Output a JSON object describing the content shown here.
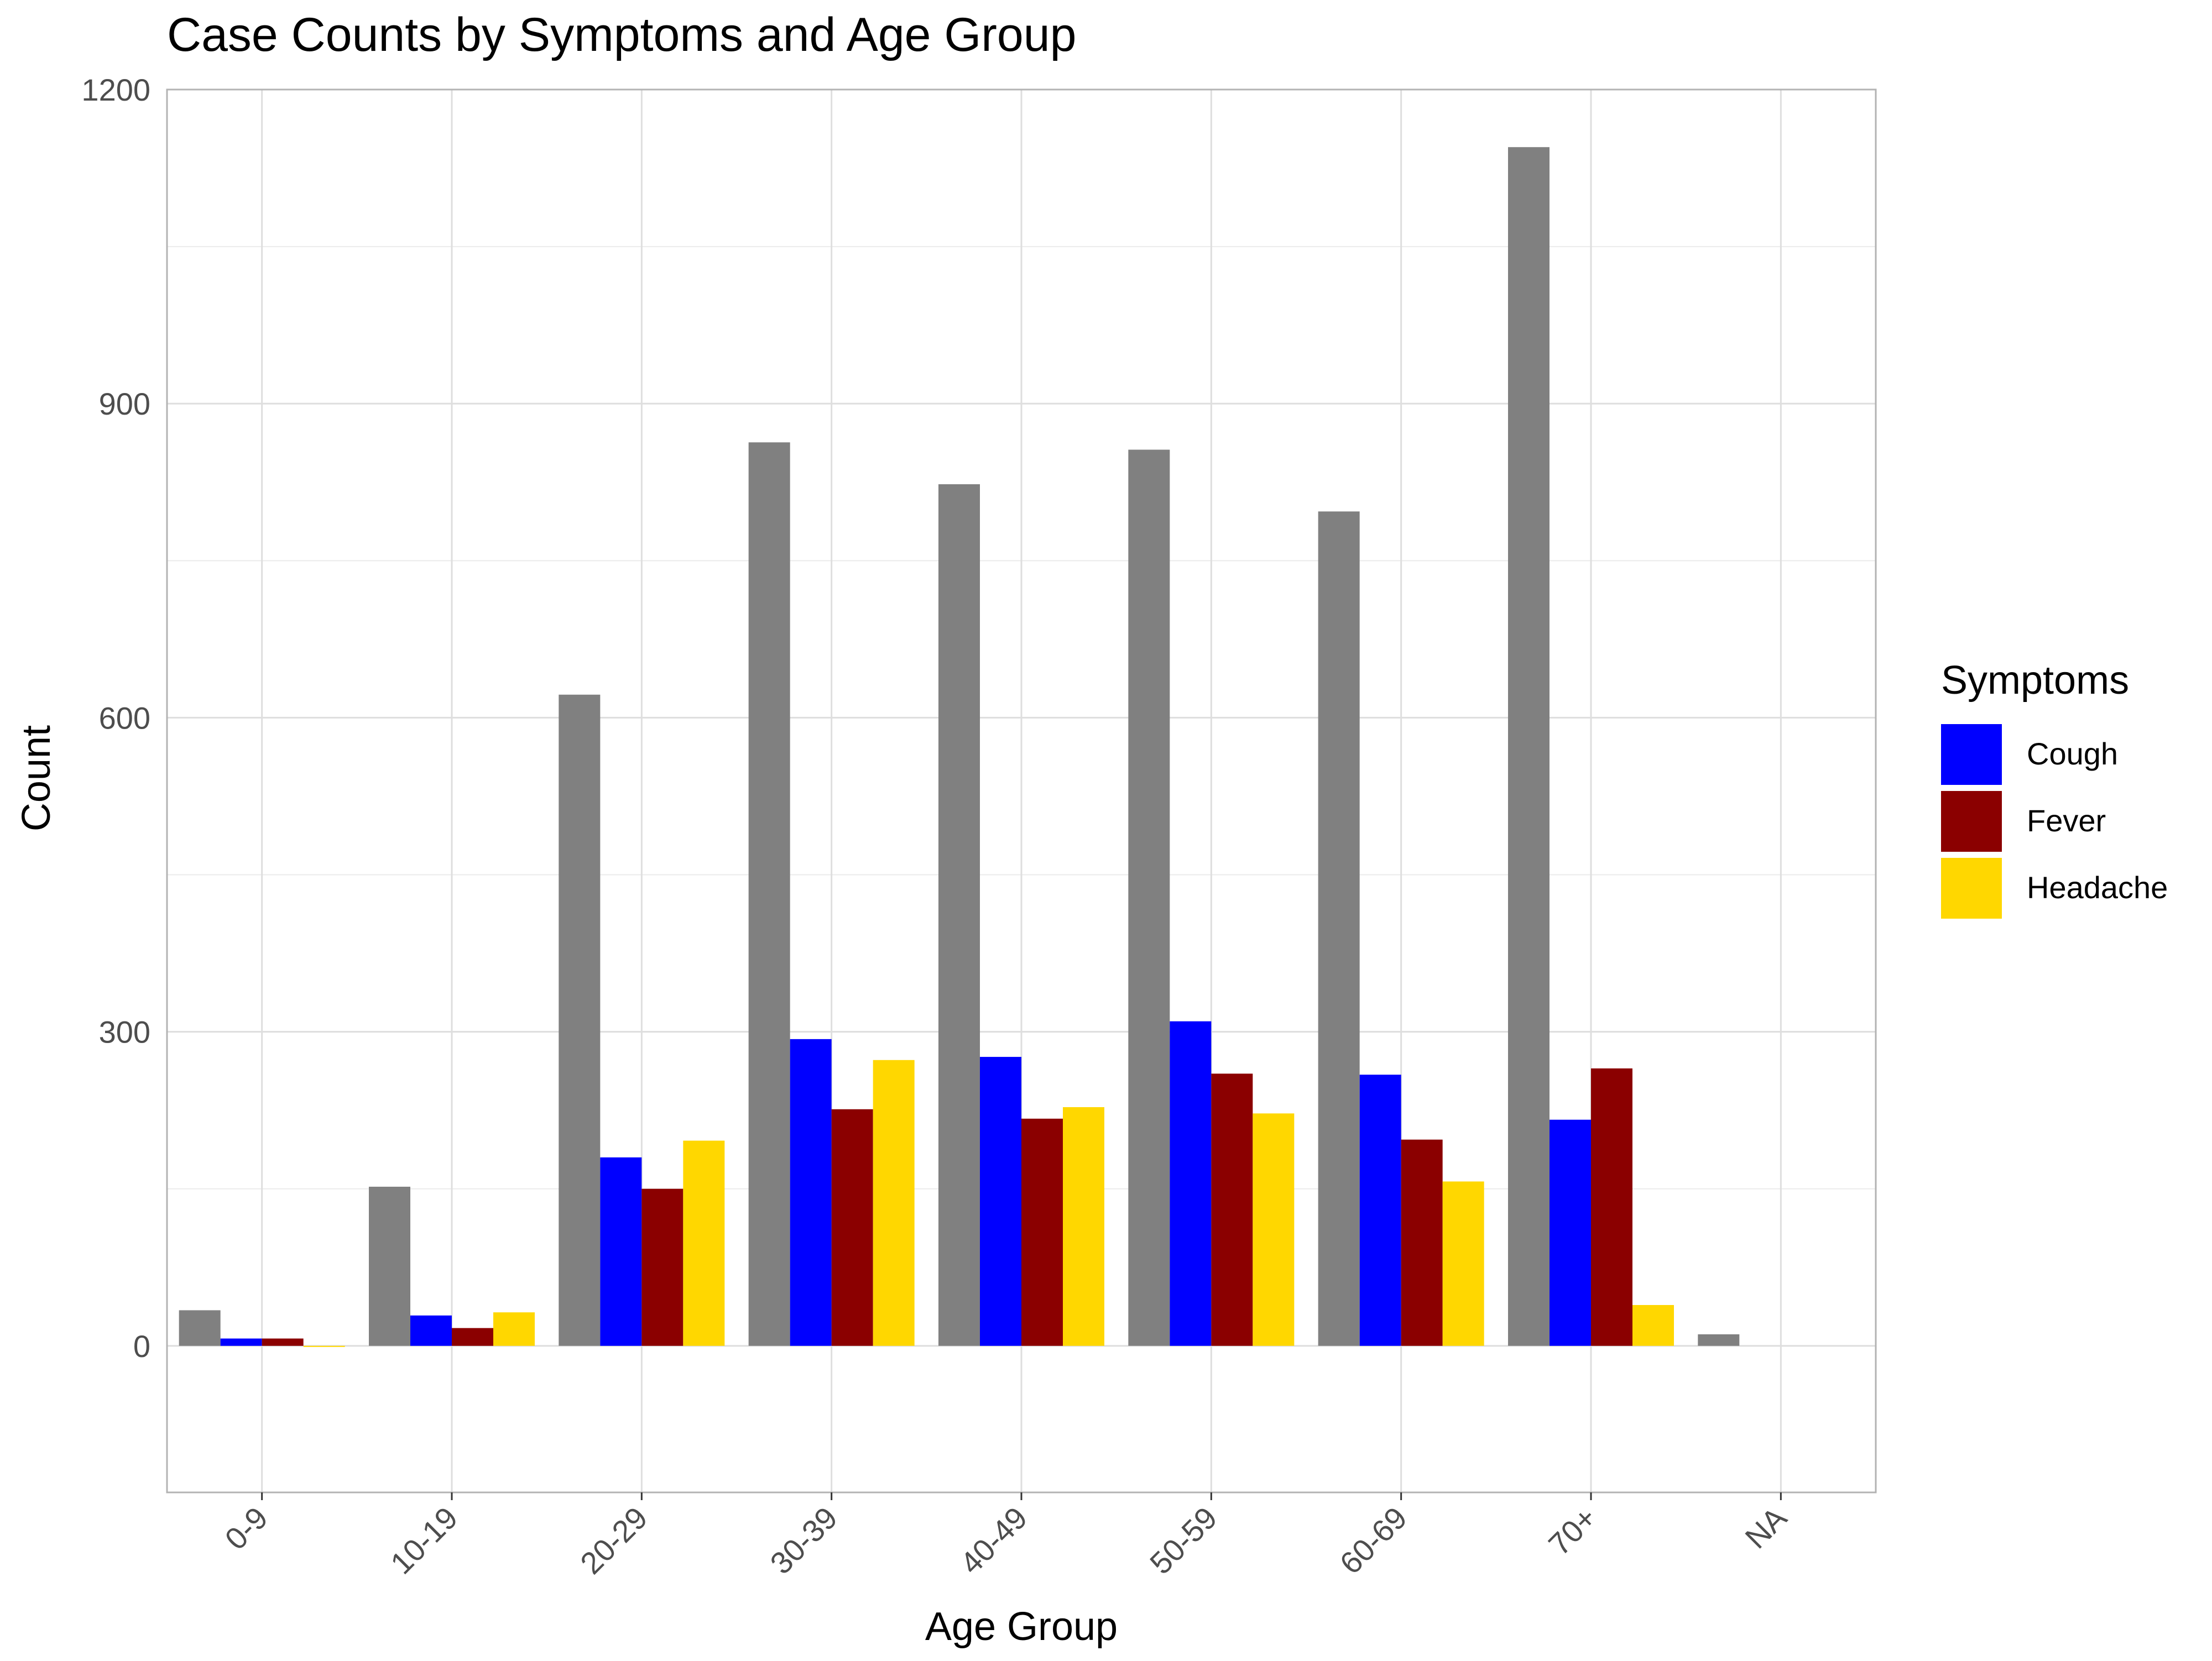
{
  "chart_data": {
    "type": "bar",
    "title": "Case Counts by Symptoms and Age Group",
    "xlabel": "Age Group",
    "ylabel": "Count",
    "ylim": [
      -140,
      1200
    ],
    "yticks": [
      0,
      300,
      600,
      900,
      1200
    ],
    "grid": true,
    "legend_position": "right",
    "legend_title": "Symptoms",
    "categories": [
      "0-9",
      "10-19",
      "20-29",
      "30-39",
      "40-49",
      "50-59",
      "60-69",
      "70+",
      "NA"
    ],
    "series": [
      {
        "name": "",
        "color": "#808080",
        "values": [
          34,
          152,
          622,
          863,
          823,
          856,
          797,
          1145,
          11
        ]
      },
      {
        "name": "Cough",
        "color": "#0000FF",
        "values": [
          7,
          29,
          180,
          293,
          276,
          310,
          259,
          216,
          null
        ]
      },
      {
        "name": "Fever",
        "color": "#8B0000",
        "values": [
          7,
          17,
          150,
          226,
          217,
          260,
          197,
          265,
          null
        ]
      },
      {
        "name": "Headache",
        "color": "#FFD700",
        "values": [
          0,
          32,
          196,
          273,
          228,
          222,
          157,
          39,
          null
        ]
      }
    ]
  }
}
